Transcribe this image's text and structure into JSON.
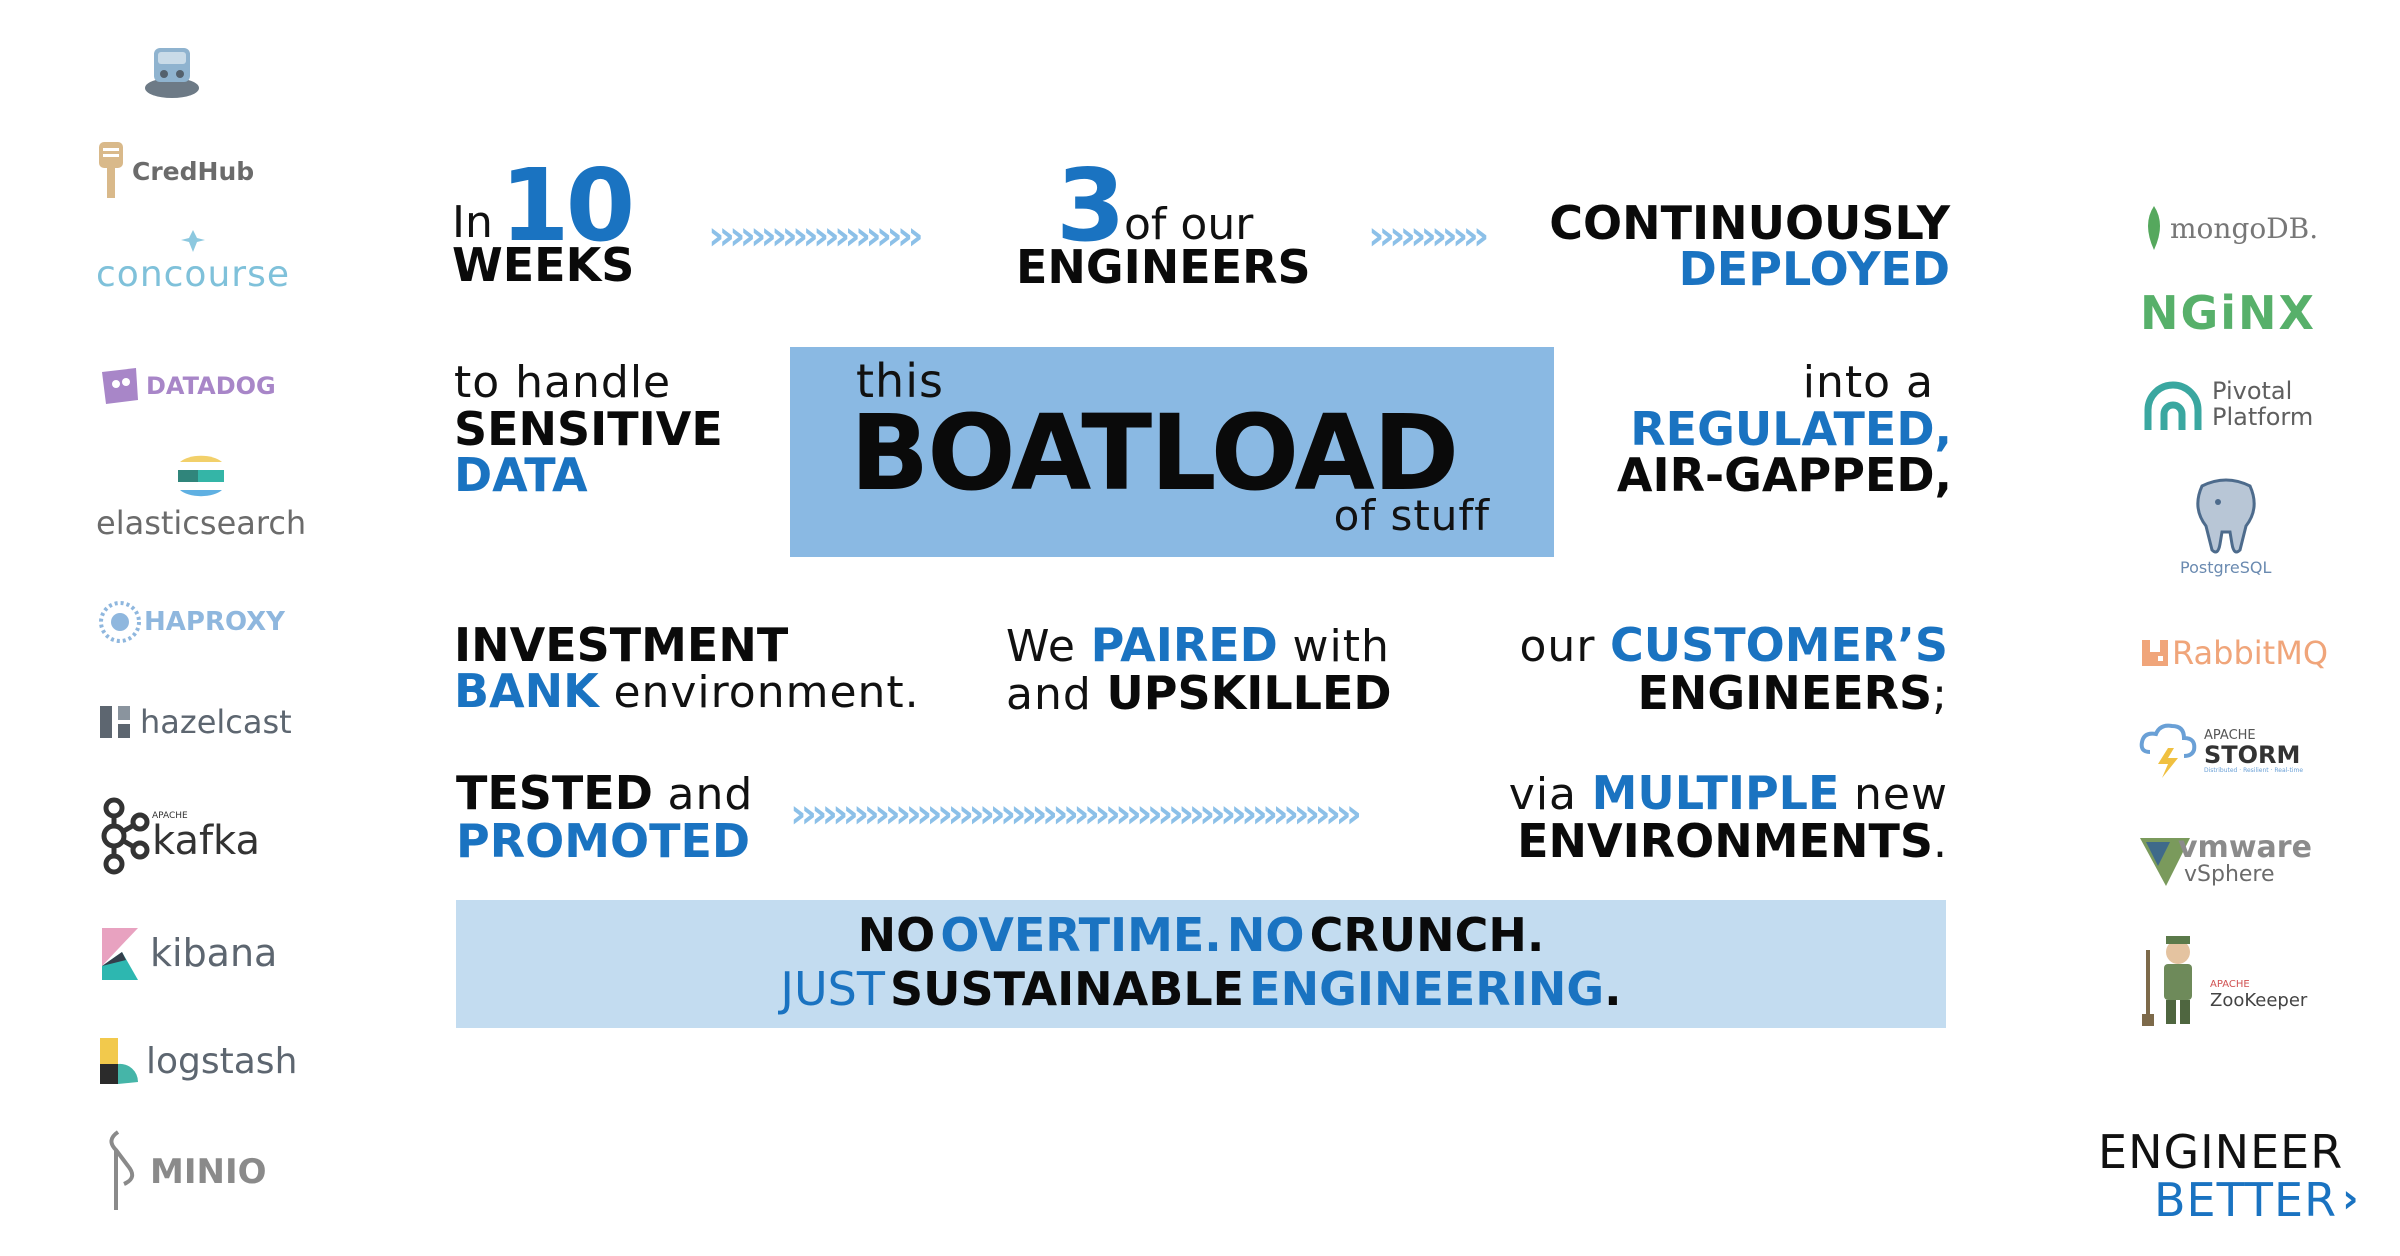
{
  "left_logos": [
    {
      "name": "bosh-logo",
      "label": ""
    },
    {
      "name": "credhub-logo",
      "label": "CredHub"
    },
    {
      "name": "concourse-logo",
      "label": "concourse"
    },
    {
      "name": "datadog-logo",
      "label": "DATADOG"
    },
    {
      "name": "elasticsearch-logo",
      "label": "elasticsearch"
    },
    {
      "name": "haproxy-logo",
      "label": "HAPROXY"
    },
    {
      "name": "hazelcast-logo",
      "label": "hazelcast"
    },
    {
      "name": "kafka-logo",
      "label": "kafka",
      "small": "APACHE"
    },
    {
      "name": "kibana-logo",
      "label": "kibana"
    },
    {
      "name": "logstash-logo",
      "label": "logstash"
    },
    {
      "name": "minio-logo",
      "label": "MINIO"
    }
  ],
  "right_logos": [
    {
      "name": "mongodb-logo",
      "label": "mongoDB."
    },
    {
      "name": "nginx-logo",
      "label": "NGiNX"
    },
    {
      "name": "pivotal-logo",
      "label": "Pivotal",
      "label2": "Platform"
    },
    {
      "name": "postgresql-logo",
      "label": "PostgreSQL"
    },
    {
      "name": "rabbitmq-logo",
      "label": "RabbitMQ"
    },
    {
      "name": "storm-logo",
      "label": "STORM",
      "small": "APACHE",
      "tag": "Distributed · Resilient · Real-time"
    },
    {
      "name": "vmware-logo",
      "label": "vmware",
      "label2": "vSphere"
    },
    {
      "name": "zookeeper-logo",
      "label": "ZooKeeper",
      "small": "APACHE"
    }
  ],
  "row1": {
    "in": "In",
    "ten": "10",
    "weeks": "WEEKS",
    "three": "3",
    "of_our": "of our",
    "engineers": "ENGINEERS",
    "continuously": "CONTINUOUSLY",
    "deployed": "DEPLOYED",
    "chev_a": "››››››››››››››››››››",
    "chev_b": "›››››››››››"
  },
  "row2": {
    "to_handle": "to handle",
    "sensitive": "SENSITIVE",
    "data": "DATA",
    "this": "this",
    "boatload": "BOATLOAD",
    "of_stuff": "of stuff",
    "into_a": "into a",
    "regulated": "REGULATED,",
    "air_gapped": "AIR-GAPPED,"
  },
  "row3": {
    "investment": "INVESTMENT",
    "bank": "BANK",
    "environment": "environment.",
    "we": "We",
    "paired": "PAIRED",
    "with": "with",
    "and": "and",
    "upskilled": "UPSKILLED",
    "our": "our",
    "customers": "CUSTOMER’S",
    "engineers": "ENGINEERS",
    "semicolon": ";"
  },
  "row4": {
    "tested": "TESTED",
    "and": "and",
    "promoted": "PROMOTED",
    "chev": "››››››››››››››››››››››››››››››››››››››››››››››››››››››",
    "via": "via",
    "multiple": "MULTIPLE",
    "new": "new",
    "environments": "ENVIRONMENTS",
    "period": "."
  },
  "banner": {
    "no1": "NO",
    "overtime": "OVERTIME.",
    "no2": "NO",
    "crunch": "CRUNCH.",
    "just": "JUST",
    "sustainable": "SUSTAINABLE",
    "engineering": "ENGINEERING",
    "period": "."
  },
  "brand": {
    "engineer": "ENGINEER",
    "better": "BETTER",
    "chevron": "›"
  }
}
